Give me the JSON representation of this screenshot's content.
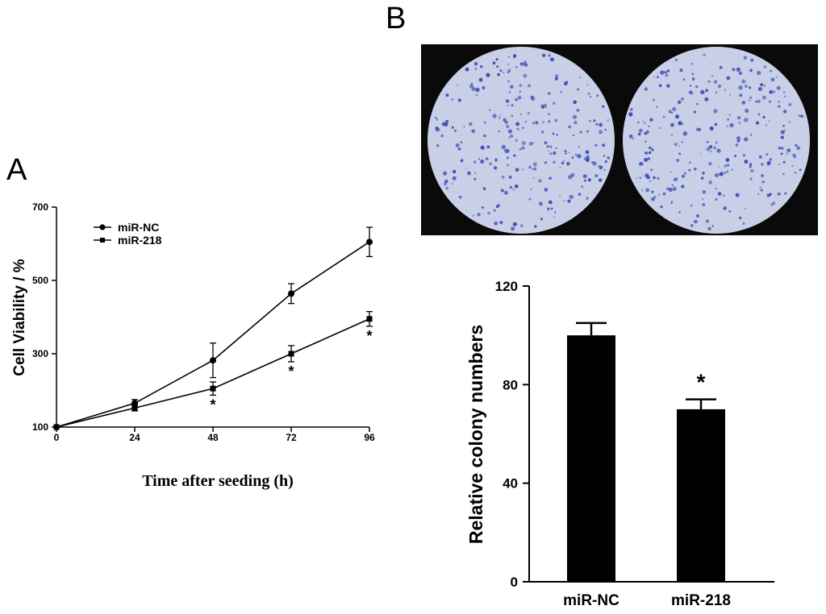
{
  "panels": {
    "a_label": "A",
    "b_label": "B"
  },
  "colors": {
    "ink": "#000000",
    "plate_background": "#0a0a0a",
    "plate_fill": "#c9cfe6",
    "colony": "#3b4fb8"
  },
  "chart_data": [
    {
      "id": "A",
      "type": "line",
      "xlabel": "Time after seeding (h)",
      "ylabel": "Cell Viability / %",
      "x": [
        0,
        24,
        48,
        72,
        96
      ],
      "xticks": [
        "0",
        "24",
        "48",
        "72",
        "96"
      ],
      "yticks": [
        "100",
        "300",
        "500",
        "700"
      ],
      "xlim": [
        0,
        96
      ],
      "ylim": [
        100,
        700
      ],
      "grid": false,
      "legend": "top-left",
      "series": [
        {
          "name": "miR-NC",
          "marker": "circle",
          "values": [
            100,
            165,
            282,
            464,
            605
          ],
          "errors": [
            0,
            10,
            47,
            27,
            40
          ]
        },
        {
          "name": "miR-218",
          "marker": "square",
          "values": [
            100,
            152,
            205,
            300,
            395
          ],
          "errors": [
            0,
            8,
            18,
            22,
            20
          ]
        }
      ],
      "annotations": [
        {
          "text": "*",
          "x": 48
        },
        {
          "text": "*",
          "x": 72
        },
        {
          "text": "*",
          "x": 96
        }
      ]
    },
    {
      "id": "B",
      "type": "bar",
      "ylabel": "Relative colony numbers",
      "categories": [
        "miR-NC",
        "miR-218"
      ],
      "values": [
        100,
        70
      ],
      "errors": [
        5,
        4
      ],
      "yticks": [
        "0",
        "40",
        "80",
        "120"
      ],
      "ylim": [
        0,
        120
      ],
      "grid": false,
      "annotations": [
        {
          "text": "*",
          "category": "miR-218"
        }
      ]
    }
  ]
}
